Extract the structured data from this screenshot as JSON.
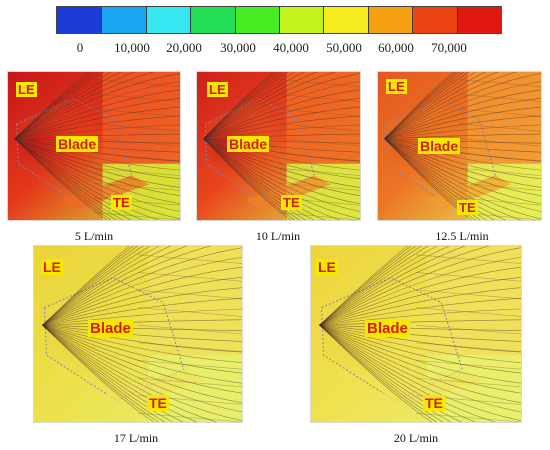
{
  "legend": {
    "ticks": [
      "0",
      "10,000",
      "20,000",
      "30,000",
      "40,000",
      "50,000",
      "60,000",
      "70,000"
    ],
    "colors": [
      "#1a3bd6",
      "#1aa6f2",
      "#36e6f0",
      "#22dd55",
      "#48ec22",
      "#c4f21c",
      "#f6ec1e",
      "#f4a010",
      "#ea4412",
      "#e0170f"
    ]
  },
  "labels": {
    "leading_edge": "LE",
    "trailing_edge": "TE",
    "blade": "Blade"
  },
  "panels": [
    {
      "caption": "5 L/min",
      "palette": {
        "left": "#c7161a",
        "mid": "#e4371a",
        "right": "#f06a22",
        "lower": "#d8e43a",
        "upper_right": "#ef5a24"
      }
    },
    {
      "caption": "10 L/min",
      "palette": {
        "left": "#cf1f1a",
        "mid": "#e8451d",
        "right": "#f28027",
        "lower": "#dde843",
        "upper_right": "#f06a25"
      }
    },
    {
      "caption": "12.5 L/min",
      "palette": {
        "left": "#e4571e",
        "mid": "#ec7424",
        "right": "#f29b2c",
        "lower": "#e6ee55",
        "upper_right": "#f29632"
      }
    },
    {
      "caption": "17 L/min",
      "palette": {
        "left": "#ecd33a",
        "mid": "#ece04a",
        "right": "#eee35a",
        "lower": "#e8ee6a",
        "upper_right": "#efe05a"
      }
    },
    {
      "caption": "20 L/min",
      "palette": {
        "left": "#eed43c",
        "mid": "#efe04e",
        "right": "#f0e35c",
        "lower": "#e9ef6c",
        "upper_right": "#f0df5c"
      }
    }
  ]
}
